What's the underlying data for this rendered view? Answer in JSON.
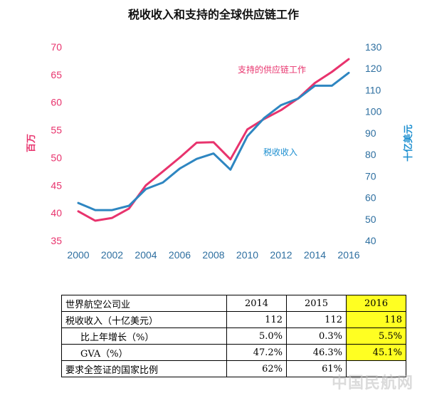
{
  "chart_data": {
    "type": "line",
    "title": "税收收入和支持的全球供应链工作",
    "x": [
      2000,
      2001,
      2002,
      2003,
      2004,
      2005,
      2006,
      2007,
      2008,
      2009,
      2010,
      2011,
      2012,
      2013,
      2014,
      2015,
      2016
    ],
    "x_ticks": [
      "2000",
      "2002",
      "2004",
      "2006",
      "2008",
      "2010",
      "2012",
      "2014",
      "2016"
    ],
    "left_axis": {
      "label": "百万",
      "ylim": [
        35,
        70
      ],
      "ticks": [
        "35",
        "40",
        "45",
        "50",
        "55",
        "60",
        "65",
        "70"
      ],
      "color": "#e8336d"
    },
    "right_axis": {
      "label": "十亿美元",
      "ylim": [
        40,
        130
      ],
      "ticks": [
        "40",
        "50",
        "60",
        "70",
        "80",
        "90",
        "100",
        "110",
        "120",
        "130"
      ],
      "color": "#1d8fd0"
    },
    "series": [
      {
        "name": "支持的供应链工作",
        "axis": "left",
        "color": "#e8336d",
        "values": [
          40.3,
          38.6,
          39.1,
          40.8,
          45.0,
          47.5,
          50.0,
          52.7,
          52.8,
          49.7,
          55.1,
          57.0,
          58.6,
          60.7,
          63.5,
          65.5,
          67.8
        ]
      },
      {
        "name": "税收收入",
        "axis": "right",
        "color": "#2e86c1",
        "values": [
          57.5,
          54.2,
          54.2,
          56.2,
          64.0,
          67.0,
          73.5,
          78.0,
          80.5,
          73.0,
          88.5,
          97.0,
          103.0,
          106.0,
          112.0,
          112.0,
          118.0
        ]
      }
    ],
    "grid": false
  },
  "table": {
    "header": {
      "label": "世界航空公司业",
      "years": [
        "2014",
        "2015",
        "2016"
      ]
    },
    "rows": [
      {
        "label": "税收收入（十亿美元）",
        "values": [
          "112",
          "112",
          "118"
        ],
        "indent": false
      },
      {
        "label": "比上年增长（%）",
        "values": [
          "5.0%",
          "0.3%",
          "5.5%"
        ],
        "indent": true
      },
      {
        "label": "GVA（%）",
        "values": [
          "47.2%",
          "46.3%",
          "45.1%"
        ],
        "indent": true
      },
      {
        "label": "要求全签证的国家比例",
        "values": [
          "62%",
          "61%",
          ""
        ],
        "indent": false
      }
    ],
    "highlight_color": "#ffff22"
  },
  "watermark": "中国民航网"
}
